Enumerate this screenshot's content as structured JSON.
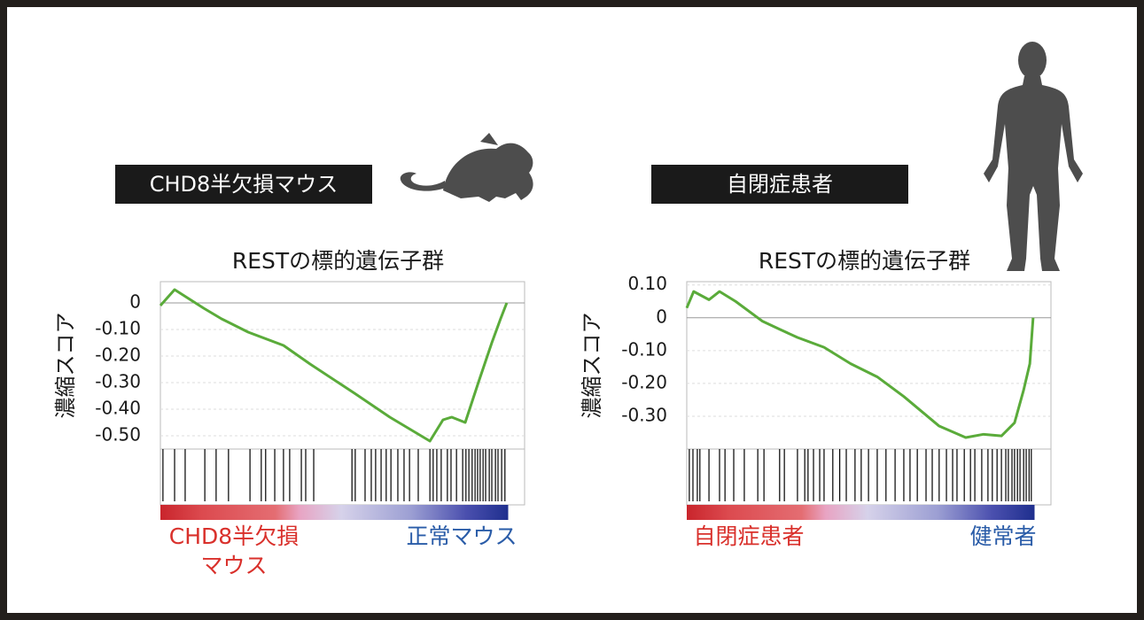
{
  "chart_data": [
    {
      "type": "line",
      "group_label": "CHD8半欠損マウス",
      "title": "RESTの標的遺伝子群",
      "y_label": "濃縮スコア",
      "x": [
        0,
        3.9,
        11.9,
        16.8,
        24.1,
        33.8,
        41.1,
        53.3,
        63,
        74,
        77.6,
        80,
        83.7,
        87.3,
        91,
        93.4,
        95.1
      ],
      "values": [
        -0.01,
        0.05,
        -0.02,
        -0.06,
        -0.11,
        -0.16,
        -0.23,
        -0.34,
        -0.43,
        -0.52,
        -0.44,
        -0.43,
        -0.45,
        -0.3,
        -0.15,
        -0.06,
        0
      ],
      "color": "#5aab3a",
      "xlim": [
        0,
        100
      ],
      "ylim": [
        -0.55,
        0.08
      ],
      "yticks": [
        0,
        {
          "value": -0.1,
          "label": "-0.10"
        },
        {
          "value": -0.2,
          "label": "-0.20"
        },
        {
          "value": -0.3,
          "label": "-0.30"
        },
        {
          "value": -0.4,
          "label": "-0.40"
        },
        {
          "value": -0.5,
          "label": "-0.50"
        }
      ],
      "hits": [
        0.7,
        3.9,
        6.8,
        12.2,
        15.3,
        18.7,
        24.6,
        27.7,
        28.9,
        31.4,
        33.8,
        35.5,
        38.7,
        39.9,
        42.1,
        52.6,
        53.5,
        56.2,
        57.9,
        59.1,
        60.6,
        62,
        63.3,
        65.2,
        66.9,
        68.4,
        70.8,
        74,
        74.9,
        75.9,
        77.1,
        78.8,
        79.8,
        81.3,
        83,
        83.9,
        84.7,
        85.6,
        86.4,
        87.1,
        87.8,
        88.6,
        89.3,
        90.3,
        91,
        92,
        92.7,
        93.7,
        94.6
      ],
      "left_label": [
        "CHD8半欠損",
        "マウス"
      ],
      "right_label": [
        "正常マウス"
      ]
    },
    {
      "type": "line",
      "group_label": "自閉症患者",
      "title": "RESTの標的遺伝子群",
      "y_label": "濃縮スコア",
      "x": [
        0,
        1.9,
        6.1,
        9,
        13.4,
        20.7,
        25.5,
        30.4,
        37.7,
        45,
        52.3,
        59.6,
        69.3,
        76.6,
        81.5,
        86.4,
        90,
        92.5,
        94.2,
        95.1
      ],
      "values": [
        0.03,
        0.08,
        0.055,
        0.08,
        0.05,
        -0.01,
        -0.035,
        -0.06,
        -0.09,
        -0.14,
        -0.18,
        -0.24,
        -0.33,
        -0.365,
        -0.355,
        -0.36,
        -0.32,
        -0.22,
        -0.14,
        0
      ],
      "color": "#5aab3a",
      "xlim": [
        0,
        100
      ],
      "ylim": [
        -0.4,
        0.11
      ],
      "yticks": [
        {
          "value": 0.1,
          "label": "0.10"
        },
        0,
        {
          "value": -0.1,
          "label": "-0.10"
        },
        {
          "value": -0.2,
          "label": "-0.20"
        },
        {
          "value": -0.3,
          "label": "-0.30"
        }
      ],
      "hits": [
        0.7,
        1.7,
        2.9,
        3.6,
        6.1,
        9,
        10.5,
        12.9,
        15.8,
        19.5,
        21.2,
        25.5,
        26.8,
        30.4,
        32.4,
        33.3,
        34.8,
        36.5,
        37.7,
        40.1,
        42,
        43.8,
        46.2,
        47.9,
        49.9,
        52.3,
        54.7,
        57.2,
        59.6,
        61.3,
        63.3,
        65.7,
        67.4,
        69.3,
        71.3,
        73,
        74.2,
        76.2,
        77.9,
        79.1,
        81,
        82.7,
        83.9,
        85.2,
        86.4,
        87.6,
        88.3,
        89.3,
        90,
        90.8,
        91.5,
        92.5,
        93.2,
        94,
        94.6
      ],
      "left_label": [
        "自閉症患者"
      ],
      "right_label": [
        "健常者"
      ]
    }
  ]
}
